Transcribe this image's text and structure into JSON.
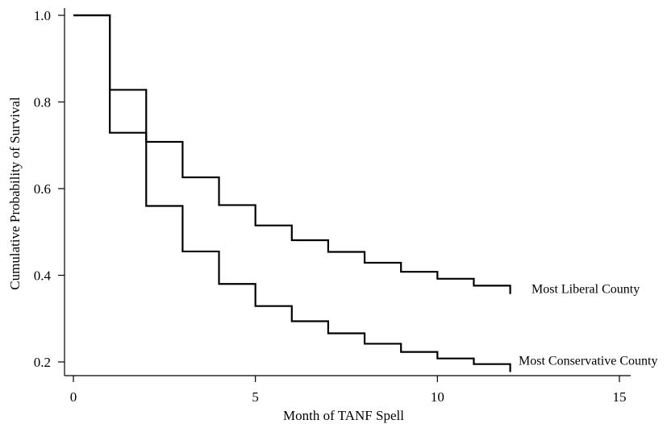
{
  "chart_data": {
    "type": "line",
    "step": true,
    "title": "",
    "xlabel": "Month of TANF Spell",
    "ylabel": "Cumulative Probability of Survival",
    "xlim": [
      0,
      15
    ],
    "ylim": [
      0.2,
      1.0
    ],
    "xticks": [
      0,
      5,
      10,
      15
    ],
    "yticks": [
      0.2,
      0.4,
      0.6,
      0.8,
      1.0
    ],
    "xtick_labels": [
      "0",
      "5",
      "10",
      "15"
    ],
    "ytick_labels": [
      "0.2",
      "0.4",
      "0.6",
      "0.8",
      "1.0"
    ],
    "grid": false,
    "series": [
      {
        "name": "Most Liberal County",
        "x": [
          0,
          1,
          2,
          3,
          4,
          5,
          6,
          7,
          8,
          9,
          10,
          11,
          12
        ],
        "values": [
          1.0,
          0.828,
          0.708,
          0.626,
          0.562,
          0.515,
          0.481,
          0.454,
          0.429,
          0.408,
          0.392,
          0.376,
          0.368
        ]
      },
      {
        "name": "Most Conservative County",
        "x": [
          0,
          1,
          2,
          3,
          4,
          5,
          6,
          7,
          8,
          9,
          10,
          11,
          12
        ],
        "values": [
          1.0,
          0.729,
          0.56,
          0.455,
          0.38,
          0.329,
          0.294,
          0.266,
          0.242,
          0.223,
          0.208,
          0.195,
          0.188
        ]
      }
    ]
  }
}
